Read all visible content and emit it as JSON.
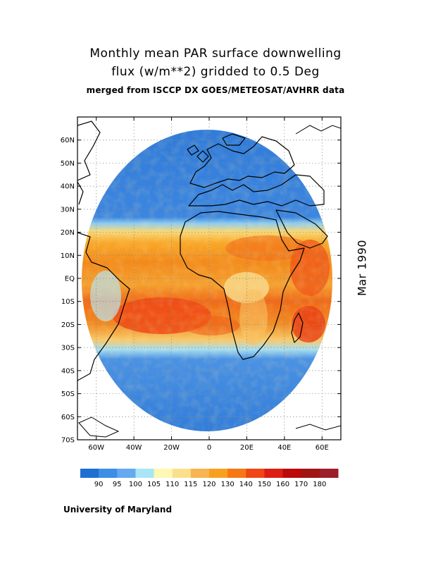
{
  "title": {
    "line1": "Monthly mean PAR surface downwelling",
    "line2": "flux (w/m**2) gridded to 0.5 Deg",
    "line3": "merged from ISCCP DX GOES/METEOSAT/AVHRR data"
  },
  "date_label": "Mar 1990",
  "credit": "University of Maryland",
  "map": {
    "lon_range": [
      -70,
      70
    ],
    "lat_range": [
      -70,
      70
    ],
    "lon_ticks": [
      {
        "value": -60,
        "label": "60W"
      },
      {
        "value": -40,
        "label": "40W"
      },
      {
        "value": -20,
        "label": "20W"
      },
      {
        "value": 0,
        "label": "0"
      },
      {
        "value": 20,
        "label": "20E"
      },
      {
        "value": 40,
        "label": "40E"
      },
      {
        "value": 60,
        "label": "60E"
      }
    ],
    "lat_ticks": [
      {
        "value": 60,
        "label": "60N"
      },
      {
        "value": 50,
        "label": "50N"
      },
      {
        "value": 40,
        "label": "40N"
      },
      {
        "value": 30,
        "label": "30N"
      },
      {
        "value": 20,
        "label": "20N"
      },
      {
        "value": 10,
        "label": "10N"
      },
      {
        "value": 0,
        "label": "EQ"
      },
      {
        "value": -10,
        "label": "10S"
      },
      {
        "value": -20,
        "label": "20S"
      },
      {
        "value": -30,
        "label": "30S"
      },
      {
        "value": -40,
        "label": "40S"
      },
      {
        "value": -50,
        "label": "50S"
      },
      {
        "value": -60,
        "label": "60S"
      },
      {
        "value": -70,
        "label": "70S"
      }
    ],
    "grid": true
  },
  "colorbar": {
    "colors": [
      "#1e6fd2",
      "#3c8ee6",
      "#64aaf0",
      "#a8e6f5",
      "#fff8b4",
      "#fae08c",
      "#f8b450",
      "#f8a01e",
      "#f57814",
      "#ef4614",
      "#dc1e14",
      "#bc0a0a",
      "#a01414",
      "#9b1e28"
    ],
    "labels": [
      "90",
      "95",
      "100",
      "105",
      "110",
      "115",
      "120",
      "130",
      "140",
      "150",
      "160",
      "170",
      "180"
    ]
  }
}
